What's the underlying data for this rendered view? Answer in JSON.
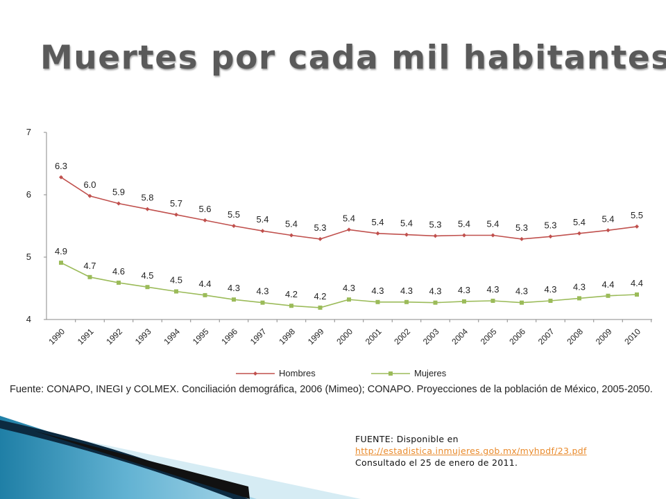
{
  "slide": {
    "title": "Muertes por cada mil habitantes",
    "source_caption": "Fuente:  CONAPO, INEGI y COLMEX. Conciliación demográfica, 2006 (Mimeo); CONAPO. Proyecciones de la población de México, 2005-2050.",
    "note": {
      "line1": "FUENTE: Disponible en",
      "link": "http://estadistica.inmujeres.gob.mx/myhpdf/23.pdf",
      "line3": "Consultado el 25 de enero de 2011."
    }
  },
  "chart_data": {
    "type": "line",
    "x": [
      "1990",
      "1991",
      "1992",
      "1993",
      "1994",
      "1995",
      "1996",
      "1997",
      "1998",
      "1999",
      "2000",
      "2001",
      "2002",
      "2003",
      "2004",
      "2005",
      "2006",
      "2007",
      "2008",
      "2009",
      "2010"
    ],
    "series": [
      {
        "name": "Hombres",
        "color": "#c0504d",
        "marker": "diamond",
        "values": [
          6.28,
          5.98,
          5.86,
          5.77,
          5.68,
          5.59,
          5.5,
          5.42,
          5.35,
          5.29,
          5.44,
          5.38,
          5.36,
          5.34,
          5.35,
          5.35,
          5.29,
          5.33,
          5.38,
          5.43,
          5.49
        ],
        "labels": [
          "6.3",
          "6.0",
          "5.9",
          "5.8",
          "5.7",
          "5.6",
          "5.5",
          "5.4",
          "5.4",
          "5.3",
          "5.4",
          "5.4",
          "5.4",
          "5.3",
          "5.4",
          "5.4",
          "5.3",
          "5.3",
          "5.4",
          "5.4",
          "5.5"
        ]
      },
      {
        "name": "Mujeres",
        "color": "#9bbb59",
        "marker": "square",
        "values": [
          4.91,
          4.68,
          4.59,
          4.52,
          4.45,
          4.39,
          4.32,
          4.27,
          4.22,
          4.19,
          4.32,
          4.28,
          4.28,
          4.27,
          4.29,
          4.3,
          4.27,
          4.3,
          4.34,
          4.38,
          4.4
        ],
        "labels": [
          "4.9",
          "4.7",
          "4.6",
          "4.5",
          "4.5",
          "4.4",
          "4.3",
          "4.3",
          "4.2",
          "4.2",
          "4.3",
          "4.3",
          "4.3",
          "4.3",
          "4.3",
          "4.3",
          "4.3",
          "4.3",
          "4.3",
          "4.4",
          "4.4"
        ]
      }
    ],
    "yticks": [
      "4",
      "5",
      "6",
      "7"
    ],
    "ylim": [
      4,
      7
    ],
    "grid": false,
    "legend_position": "bottom"
  }
}
